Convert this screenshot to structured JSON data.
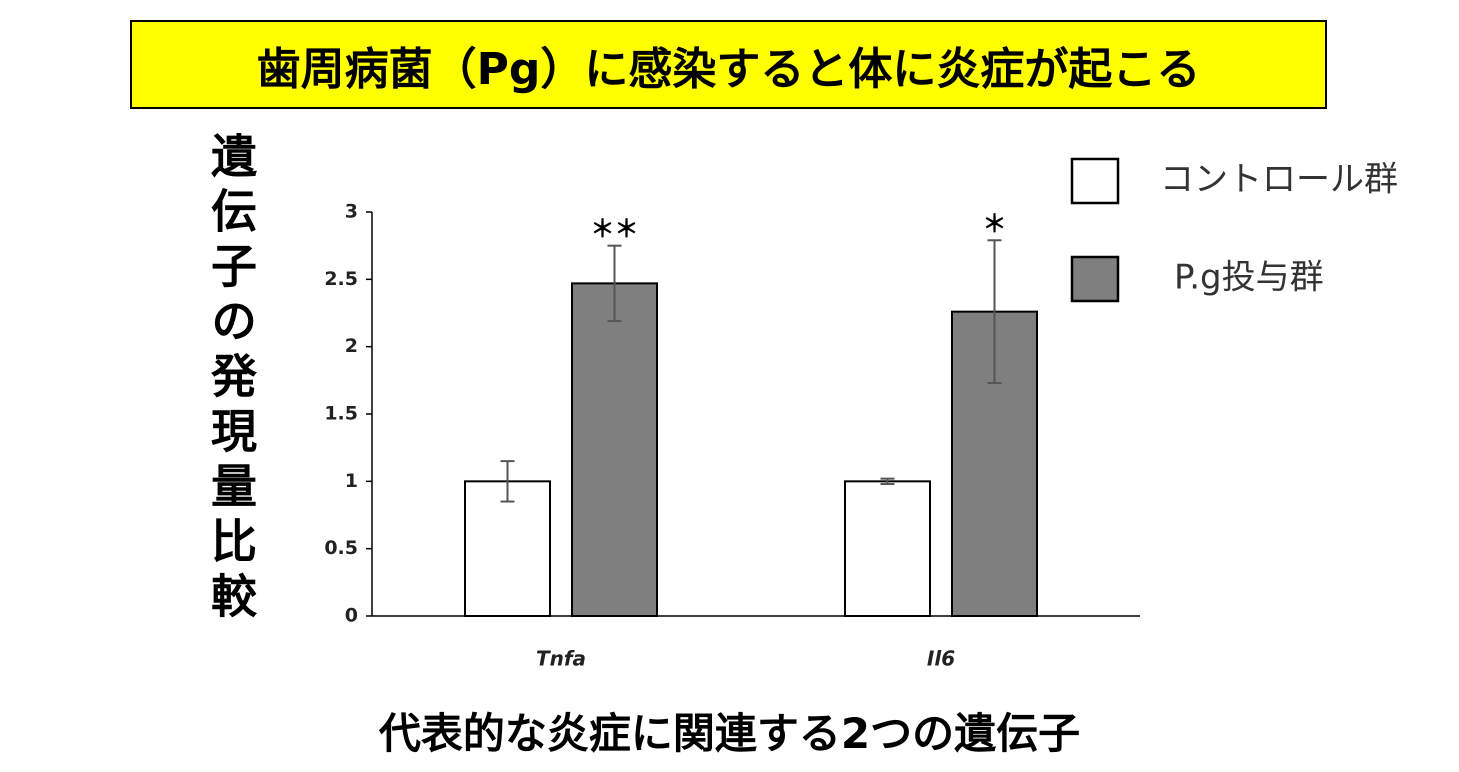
{
  "chart_data": {
    "type": "bar",
    "title": "歯周病菌（Pg）に感染すると体に炎症が起こる",
    "y_label": "遺伝子の発現量比較",
    "x_label": "代表的な炎症に関連する2つの遺伝子",
    "categories": [
      "Tnfa",
      "Il6"
    ],
    "series": [
      {
        "name": "コントロール群",
        "color": "#ffffff",
        "values": [
          1,
          1
        ],
        "errors": [
          0.15,
          0.02
        ]
      },
      {
        "name": "P.g投与群",
        "color": "#7f7f7f",
        "values": [
          2.47,
          2.26
        ],
        "errors": [
          0.28,
          0.53
        ],
        "significance": [
          "＊＊",
          "＊"
        ]
      }
    ],
    "ylim": [
      0,
      3
    ],
    "yticks": [
      0,
      0.5,
      1,
      1.5,
      2,
      2.5,
      3
    ],
    "legend": "upper right"
  }
}
